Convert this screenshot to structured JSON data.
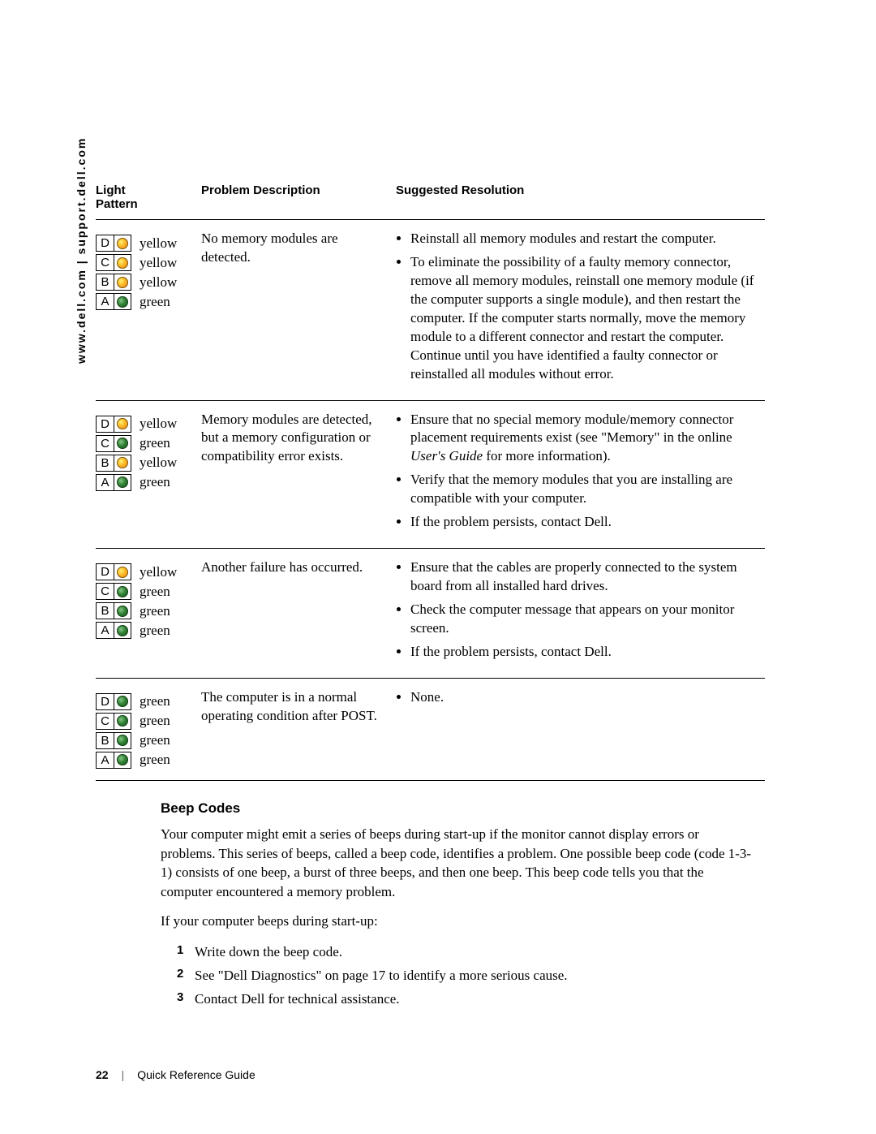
{
  "sidebar": "www.dell.com | support.dell.com",
  "table": {
    "headers": {
      "c1a": "Light",
      "c1b": "Pattern",
      "c2": "Problem Description",
      "c3": "Suggested Resolution"
    },
    "led_labels": [
      "D",
      "C",
      "B",
      "A"
    ],
    "rows": [
      {
        "lights": [
          {
            "color": "yellow",
            "css": "led-yellow"
          },
          {
            "color": "yellow",
            "css": "led-yellow"
          },
          {
            "color": "yellow",
            "css": "led-yellow"
          },
          {
            "color": "green",
            "css": "led-green"
          }
        ],
        "problem": "No memory modules are detected.",
        "resolutions": [
          "Reinstall all memory modules and restart the computer.",
          "To eliminate the possibility of a faulty memory connector, remove all memory modules, reinstall one memory module (if the computer supports a single module), and then restart the computer. If the computer starts normally, move the memory module to a different connector and restart the computer. Continue until you have identified a faulty connector or reinstalled all modules without error."
        ]
      },
      {
        "lights": [
          {
            "color": "yellow",
            "css": "led-yellow"
          },
          {
            "color": "green",
            "css": "led-green"
          },
          {
            "color": "yellow",
            "css": "led-yellow"
          },
          {
            "color": "green",
            "css": "led-green"
          }
        ],
        "problem": "Memory modules are detected, but a memory configuration or compatibility error exists.",
        "resolutions_html": [
          {
            "pre": "Ensure that no special memory module/memory connector placement requirements exist (see \"Memory\" in the online ",
            "it": "User's Guide",
            "post": " for more information)."
          },
          {
            "pre": "Verify that the memory modules that you are installing are compatible with your computer.",
            "it": "",
            "post": ""
          },
          {
            "pre": "If the problem persists, contact Dell.",
            "it": "",
            "post": ""
          }
        ]
      },
      {
        "lights": [
          {
            "color": "yellow",
            "css": "led-yellow"
          },
          {
            "color": "green",
            "css": "led-green"
          },
          {
            "color": "green",
            "css": "led-green"
          },
          {
            "color": "green",
            "css": "led-green"
          }
        ],
        "problem": "Another failure has occurred.",
        "resolutions": [
          "Ensure that the cables are properly connected to the system board from all installed hard drives.",
          "Check the computer message that appears on your monitor screen.",
          "If the problem persists, contact Dell."
        ]
      },
      {
        "lights": [
          {
            "color": "green",
            "css": "led-green"
          },
          {
            "color": "green",
            "css": "led-green"
          },
          {
            "color": "green",
            "css": "led-green"
          },
          {
            "color": "green",
            "css": "led-green"
          }
        ],
        "problem": "The computer is in a normal operating condition after POST.",
        "resolutions": [
          "None."
        ]
      }
    ]
  },
  "beep": {
    "heading": "Beep Codes",
    "p1": "Your computer might emit a series of beeps during start-up if the monitor cannot display errors or problems. This series of beeps, called a beep code, identifies a problem. One possible beep code (code 1-3-1) consists of one beep, a burst of three beeps, and then one beep. This beep code tells you that the computer encountered a memory problem.",
    "p2": "If your computer beeps during start-up:",
    "steps": [
      "Write down the beep code.",
      "See \"Dell Diagnostics\" on page 17 to identify a more serious cause.",
      "Contact Dell for technical assistance."
    ]
  },
  "footer": {
    "page": "22",
    "title": "Quick Reference Guide"
  }
}
